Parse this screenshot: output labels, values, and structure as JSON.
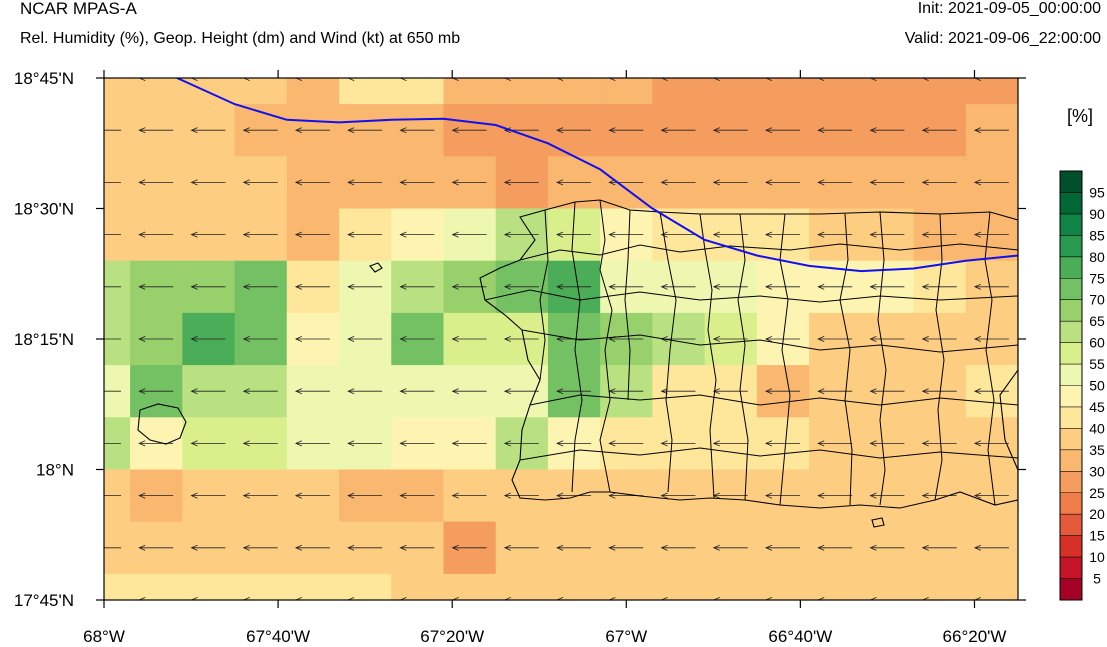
{
  "header": {
    "title": "NCAR MPAS-A",
    "subtitle": "Rel. Humidity (%), Geop. Height (dm) and Wind (kt) at 650 mb",
    "init": "Init: 2021-09-05_00:00:00",
    "valid": "Valid: 2021-09-06_22:00:00"
  },
  "map": {
    "lon_range": [
      -68.0,
      -66.25
    ],
    "lat_range": [
      17.75,
      18.75
    ],
    "lon_ticks": [
      {
        "value": -68.0,
        "label": "68°W"
      },
      {
        "value": -67.6667,
        "label": "67°40'W"
      },
      {
        "value": -67.3333,
        "label": "67°20'W"
      },
      {
        "value": -67.0,
        "label": "67°W"
      },
      {
        "value": -66.6667,
        "label": "66°40'W"
      },
      {
        "value": -66.3333,
        "label": "66°20'W"
      }
    ],
    "lat_ticks": [
      {
        "value": 18.75,
        "label": "18°45'N"
      },
      {
        "value": 18.5,
        "label": "18°30'N"
      },
      {
        "value": 18.25,
        "label": "18°15'N"
      },
      {
        "value": 18.0,
        "label": "18°N"
      },
      {
        "value": 17.75,
        "label": "17°45'N"
      }
    ],
    "grid": {
      "lon_start": -68.0,
      "lon_step": 0.1,
      "lat_start": 18.75,
      "lat_step": -0.1,
      "rh": [
        [
          35,
          35,
          35,
          35,
          30,
          40,
          40,
          30,
          30,
          30,
          30,
          25,
          25,
          25,
          25,
          25,
          25,
          25
        ],
        [
          35,
          35,
          35,
          30,
          30,
          30,
          30,
          25,
          25,
          25,
          25,
          25,
          25,
          25,
          25,
          25,
          25,
          30
        ],
        [
          35,
          35,
          35,
          35,
          30,
          30,
          30,
          30,
          25,
          30,
          30,
          30,
          30,
          30,
          30,
          30,
          30,
          30
        ],
        [
          35,
          35,
          35,
          35,
          30,
          40,
          45,
          50,
          60,
          55,
          45,
          40,
          40,
          40,
          35,
          35,
          30,
          30
        ],
        [
          60,
          65,
          65,
          70,
          40,
          50,
          60,
          65,
          70,
          75,
          50,
          50,
          50,
          45,
          45,
          45,
          40,
          35
        ],
        [
          60,
          65,
          75,
          70,
          45,
          50,
          70,
          55,
          55,
          70,
          65,
          60,
          55,
          45,
          35,
          35,
          35,
          35
        ],
        [
          50,
          70,
          60,
          60,
          50,
          50,
          50,
          50,
          50,
          70,
          60,
          40,
          40,
          30,
          35,
          35,
          35,
          40
        ],
        [
          60,
          45,
          55,
          55,
          50,
          50,
          45,
          45,
          60,
          45,
          40,
          40,
          40,
          40,
          35,
          35,
          35,
          35
        ],
        [
          35,
          30,
          35,
          35,
          35,
          30,
          30,
          35,
          35,
          35,
          35,
          35,
          35,
          35,
          35,
          35,
          35,
          35
        ],
        [
          35,
          35,
          35,
          35,
          35,
          35,
          35,
          25,
          35,
          35,
          35,
          35,
          35,
          35,
          35,
          35,
          35,
          35
        ],
        [
          40,
          40,
          40,
          40,
          40,
          40,
          35,
          35,
          35,
          35,
          35,
          35,
          35,
          35,
          35,
          35,
          35,
          35
        ]
      ]
    },
    "height_contour": [
      [
        -67.86,
        18.75
      ],
      [
        -67.75,
        18.7
      ],
      [
        -67.65,
        18.67
      ],
      [
        -67.55,
        18.665
      ],
      [
        -67.45,
        18.67
      ],
      [
        -67.35,
        18.672
      ],
      [
        -67.25,
        18.66
      ],
      [
        -67.15,
        18.625
      ],
      [
        -67.05,
        18.575
      ],
      [
        -66.95,
        18.5
      ],
      [
        -66.85,
        18.44
      ],
      [
        -66.75,
        18.41
      ],
      [
        -66.65,
        18.39
      ],
      [
        -66.55,
        18.38
      ],
      [
        -66.45,
        18.385
      ],
      [
        -66.35,
        18.4
      ],
      [
        -66.25,
        18.41
      ]
    ],
    "wind": {
      "direction": "easterly"
    }
  },
  "colorbar": {
    "unit": "[%]",
    "levels": [
      5,
      10,
      15,
      20,
      25,
      30,
      35,
      40,
      45,
      50,
      55,
      60,
      65,
      70,
      75,
      80,
      85,
      90,
      95
    ],
    "colors": [
      "#a50026",
      "#c4142a",
      "#d73027",
      "#e65a3c",
      "#f07c4a",
      "#f59d5f",
      "#fab76f",
      "#fdcd82",
      "#fee69a",
      "#fdf4b2",
      "#eef7b0",
      "#d9ef8b",
      "#b9e181",
      "#98d06c",
      "#74c164",
      "#4bad58",
      "#279a4f",
      "#0f8446",
      "#006837",
      "#004f2a"
    ]
  }
}
